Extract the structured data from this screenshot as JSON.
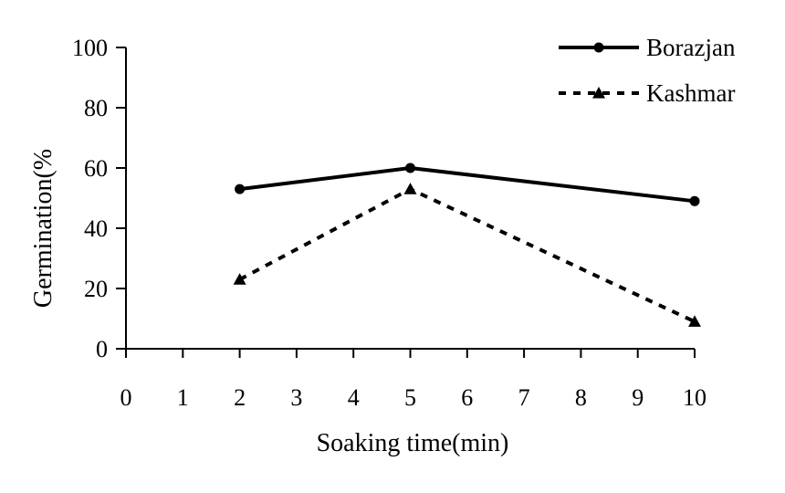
{
  "chart_data": {
    "type": "line",
    "title": "",
    "xlabel": "Soaking time(min)",
    "ylabel": "Germination(%",
    "x_tick_labels": [
      "0",
      "1",
      "2",
      "3",
      "4",
      "5",
      "6",
      "7",
      "8",
      "9",
      "10"
    ],
    "y_ticks": [
      0,
      20,
      40,
      60,
      80,
      100
    ],
    "ylim": [
      0,
      100
    ],
    "grid": false,
    "legend_position": "top-right",
    "series": [
      {
        "name": "Borazjan",
        "style": "solid",
        "marker": "circle",
        "color": "#000000",
        "points": [
          {
            "x": "2",
            "y": 53
          },
          {
            "x": "5",
            "y": 60
          },
          {
            "x": "10",
            "y": 49
          }
        ]
      },
      {
        "name": "Kashmar",
        "style": "dashed",
        "marker": "triangle",
        "color": "#000000",
        "points": [
          {
            "x": "2",
            "y": 23
          },
          {
            "x": "5",
            "y": 53
          },
          {
            "x": "10",
            "y": 9
          }
        ]
      }
    ]
  }
}
